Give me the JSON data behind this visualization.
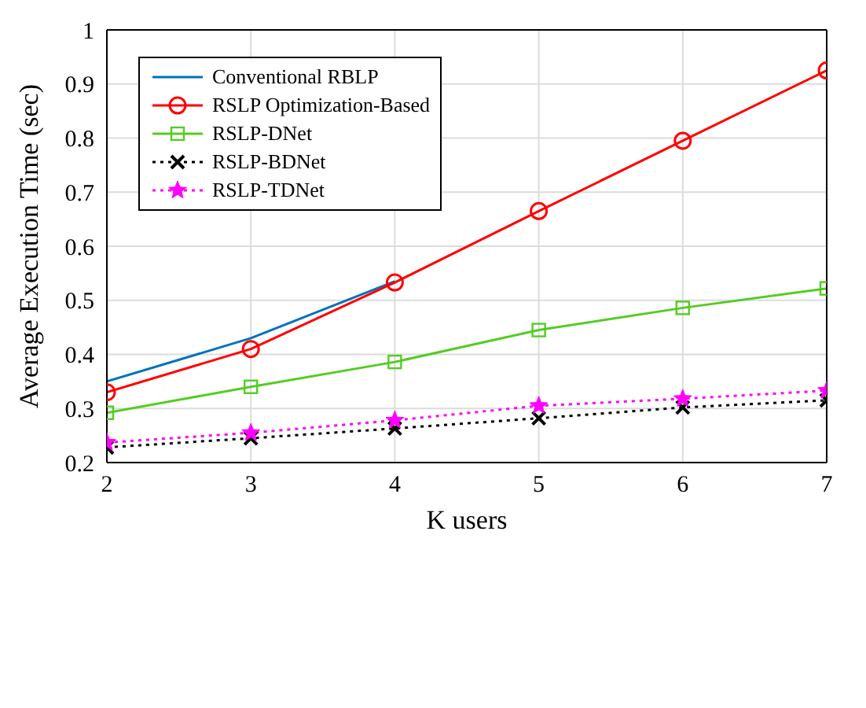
{
  "chart_data": {
    "type": "line",
    "xlabel": "K users",
    "ylabel": "Average Execution Time (sec)",
    "x": [
      2,
      3,
      4,
      5,
      6,
      7
    ],
    "xlim": [
      2,
      7
    ],
    "xticks": [
      2,
      3,
      4,
      5,
      6,
      7
    ],
    "ylim": [
      0.2,
      1
    ],
    "yticks": [
      0.2,
      0.3,
      0.4,
      0.5,
      0.6,
      0.7,
      0.8,
      0.9,
      1
    ],
    "grid": true,
    "legend": "top left",
    "series": [
      {
        "name": "Conventional RBLP",
        "color": "#0072bd",
        "values": [
          0.35,
          0.43,
          0.535,
          null,
          null,
          null
        ],
        "marker": "none",
        "line_style": "solid"
      },
      {
        "name": "RSLP Optimization-Based",
        "color": "#ff0000",
        "values": [
          0.33,
          0.41,
          0.533,
          0.665,
          0.795,
          0.925
        ],
        "marker": "circle",
        "line_style": "solid"
      },
      {
        "name": "RSLP-DNet",
        "color": "#55cc22",
        "values": [
          0.292,
          0.34,
          0.386,
          0.445,
          0.486,
          0.522
        ],
        "marker": "square",
        "line_style": "solid"
      },
      {
        "name": "RSLP-BDNet",
        "color": "#000000",
        "values": [
          0.228,
          0.245,
          0.263,
          0.282,
          0.302,
          0.315
        ],
        "marker": "cross",
        "line_style": "dotted"
      },
      {
        "name": "RSLP-TDNet",
        "color": "#ff00ff",
        "values": [
          0.237,
          0.255,
          0.278,
          0.305,
          0.318,
          0.333
        ],
        "marker": "star",
        "line_style": "dotted"
      }
    ]
  }
}
